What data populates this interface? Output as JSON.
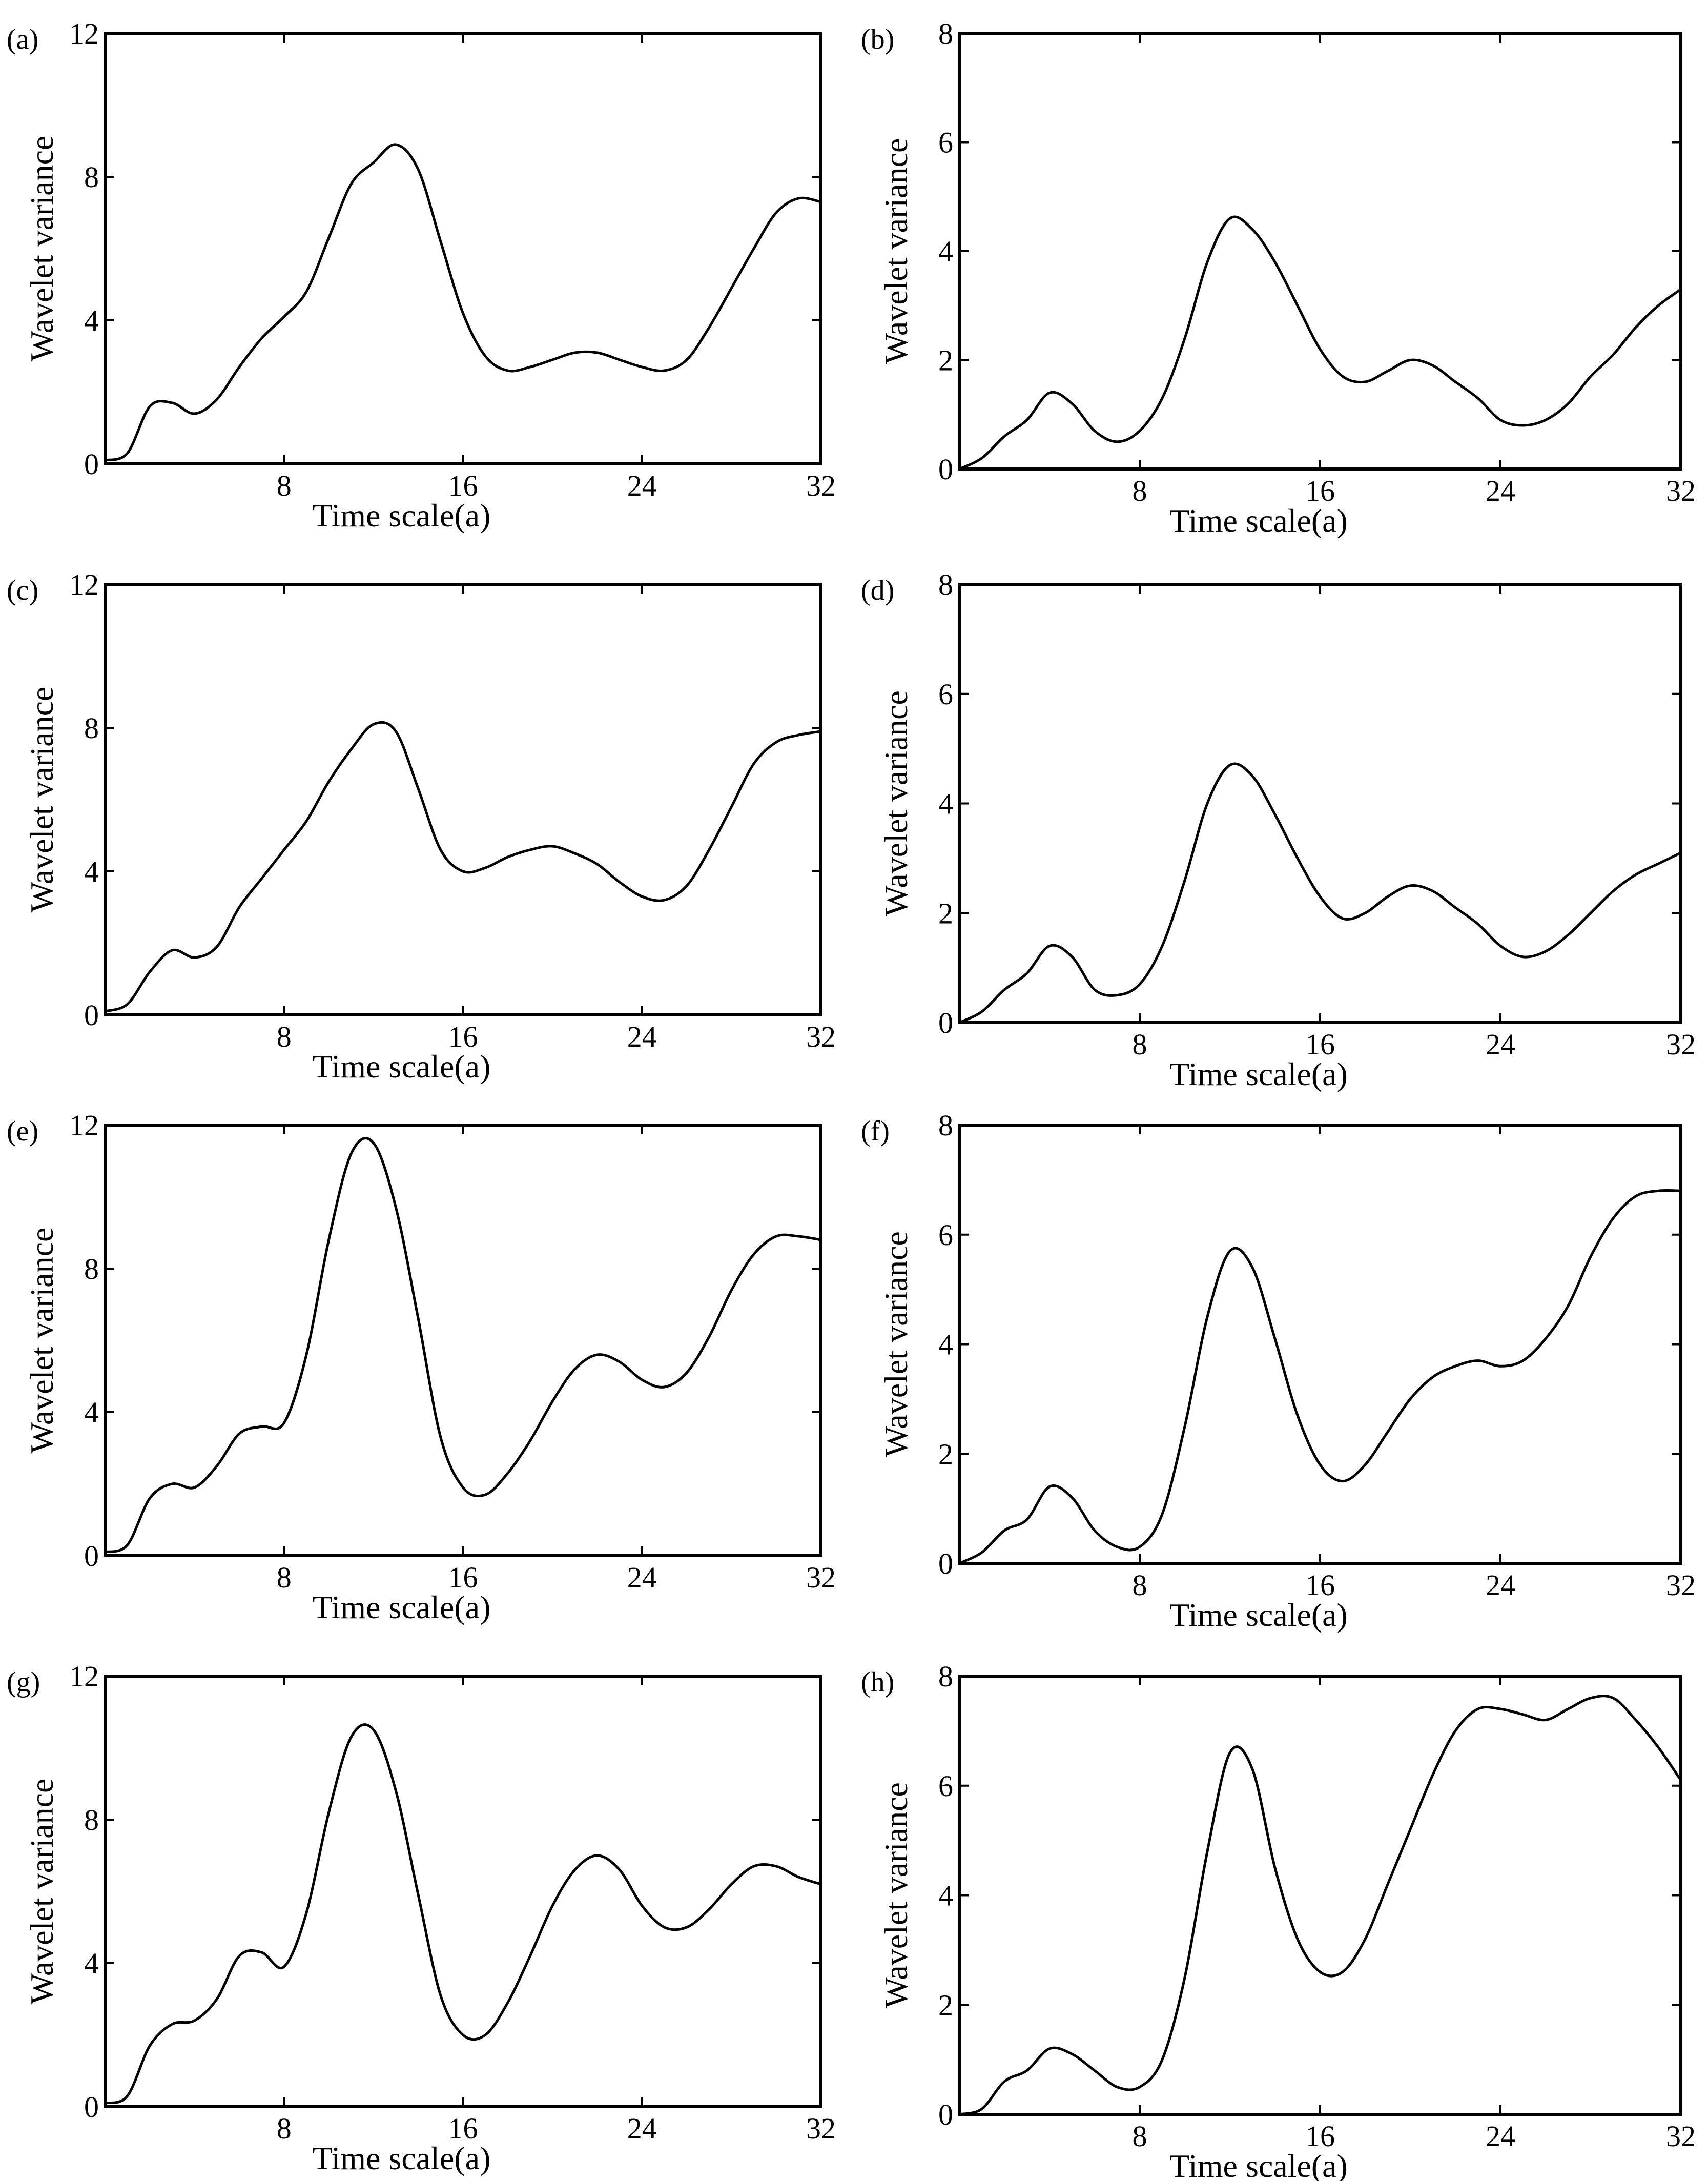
{
  "chart_data": [
    {
      "panel": "(a)",
      "type": "line",
      "xlabel": "Time scale(a)",
      "ylabel": "Wavelet variance",
      "xlim": [
        0,
        32
      ],
      "ylim": [
        0,
        12
      ],
      "xticks": [
        8,
        16,
        24,
        32
      ],
      "yticks": [
        0,
        4,
        8,
        12
      ],
      "x": [
        0,
        1,
        2,
        3,
        4,
        5,
        6,
        7,
        8,
        9,
        10,
        11,
        12,
        13,
        14,
        15,
        16,
        17,
        18,
        19,
        20,
        21,
        22,
        23,
        24,
        25,
        26,
        27,
        28,
        29,
        30,
        31,
        32
      ],
      "y": [
        0.1,
        0.3,
        1.6,
        1.7,
        1.4,
        1.8,
        2.7,
        3.5,
        4.1,
        4.8,
        6.3,
        7.8,
        8.4,
        8.9,
        8.2,
        6.2,
        4.2,
        3.0,
        2.6,
        2.7,
        2.9,
        3.1,
        3.1,
        2.9,
        2.7,
        2.6,
        2.9,
        3.8,
        4.9,
        6.0,
        7.0,
        7.4,
        7.3
      ]
    },
    {
      "panel": "(b)",
      "type": "line",
      "xlabel": "Time scale(a)",
      "ylabel": "Wavelet variance",
      "xlim": [
        0,
        32
      ],
      "ylim": [
        0,
        8
      ],
      "xticks": [
        8,
        16,
        24,
        32
      ],
      "yticks": [
        0,
        2,
        4,
        6,
        8
      ],
      "x": [
        0,
        1,
        2,
        3,
        4,
        5,
        6,
        7,
        8,
        9,
        10,
        11,
        12,
        13,
        14,
        15,
        16,
        17,
        18,
        19,
        20,
        21,
        22,
        23,
        24,
        25,
        26,
        27,
        28,
        29,
        30,
        31,
        32
      ],
      "y": [
        0.0,
        0.2,
        0.6,
        0.9,
        1.4,
        1.2,
        0.7,
        0.5,
        0.7,
        1.3,
        2.4,
        3.8,
        4.6,
        4.4,
        3.8,
        3.0,
        2.2,
        1.7,
        1.6,
        1.8,
        2.0,
        1.9,
        1.6,
        1.3,
        0.9,
        0.8,
        0.9,
        1.2,
        1.7,
        2.1,
        2.6,
        3.0,
        3.3
      ]
    },
    {
      "panel": "(c)",
      "type": "line",
      "xlabel": "Time scale(a)",
      "ylabel": "Wavelet variance",
      "xlim": [
        0,
        32
      ],
      "ylim": [
        0,
        12
      ],
      "xticks": [
        8,
        16,
        24,
        32
      ],
      "yticks": [
        0,
        4,
        8,
        12
      ],
      "x": [
        0,
        1,
        2,
        3,
        4,
        5,
        6,
        7,
        8,
        9,
        10,
        11,
        12,
        13,
        14,
        15,
        16,
        17,
        18,
        19,
        20,
        21,
        22,
        23,
        24,
        25,
        26,
        27,
        28,
        29,
        30,
        31,
        32
      ],
      "y": [
        0.1,
        0.3,
        1.2,
        1.8,
        1.6,
        1.9,
        3.0,
        3.8,
        4.6,
        5.4,
        6.5,
        7.4,
        8.1,
        7.9,
        6.3,
        4.6,
        4.0,
        4.1,
        4.4,
        4.6,
        4.7,
        4.5,
        4.2,
        3.7,
        3.3,
        3.2,
        3.6,
        4.6,
        5.8,
        7.0,
        7.6,
        7.8,
        7.9
      ]
    },
    {
      "panel": "(d)",
      "type": "line",
      "xlabel": "Time scale(a)",
      "ylabel": "Wavelet variance",
      "xlim": [
        0,
        32
      ],
      "ylim": [
        0,
        8
      ],
      "xticks": [
        8,
        16,
        24,
        32
      ],
      "yticks": [
        0,
        2,
        4,
        6,
        8
      ],
      "x": [
        0,
        1,
        2,
        3,
        4,
        5,
        6,
        7,
        8,
        9,
        10,
        11,
        12,
        13,
        14,
        15,
        16,
        17,
        18,
        19,
        20,
        21,
        22,
        23,
        24,
        25,
        26,
        27,
        28,
        29,
        30,
        31,
        32
      ],
      "y": [
        0.0,
        0.2,
        0.6,
        0.9,
        1.4,
        1.2,
        0.6,
        0.5,
        0.7,
        1.4,
        2.6,
        4.0,
        4.7,
        4.5,
        3.8,
        3.0,
        2.3,
        1.9,
        2.0,
        2.3,
        2.5,
        2.4,
        2.1,
        1.8,
        1.4,
        1.2,
        1.3,
        1.6,
        2.0,
        2.4,
        2.7,
        2.9,
        3.1
      ]
    },
    {
      "panel": "(e)",
      "type": "line",
      "xlabel": "Time scale(a)",
      "ylabel": "Wavelet variance",
      "xlim": [
        0,
        32
      ],
      "ylim": [
        0,
        12
      ],
      "xticks": [
        8,
        16,
        24,
        32
      ],
      "yticks": [
        0,
        4,
        8,
        12
      ],
      "x": [
        0,
        1,
        2,
        3,
        4,
        5,
        6,
        7,
        8,
        9,
        10,
        11,
        12,
        13,
        14,
        15,
        16,
        17,
        18,
        19,
        20,
        21,
        22,
        23,
        24,
        25,
        26,
        27,
        28,
        29,
        30,
        31,
        32
      ],
      "y": [
        0.1,
        0.3,
        1.6,
        2.0,
        1.9,
        2.5,
        3.4,
        3.6,
        3.7,
        5.6,
        8.8,
        11.2,
        11.5,
        9.7,
        6.6,
        3.3,
        1.9,
        1.7,
        2.3,
        3.2,
        4.3,
        5.2,
        5.6,
        5.4,
        4.9,
        4.7,
        5.1,
        6.1,
        7.4,
        8.4,
        8.9,
        8.9,
        8.8
      ]
    },
    {
      "panel": "(f)",
      "type": "line",
      "xlabel": "Time scale(a)",
      "ylabel": "Wavelet variance",
      "xlim": [
        0,
        32
      ],
      "ylim": [
        0,
        8
      ],
      "xticks": [
        8,
        16,
        24,
        32
      ],
      "yticks": [
        0,
        2,
        4,
        6,
        8
      ],
      "x": [
        0,
        1,
        2,
        3,
        4,
        5,
        6,
        7,
        8,
        9,
        10,
        11,
        12,
        13,
        14,
        15,
        16,
        17,
        18,
        19,
        20,
        21,
        22,
        23,
        24,
        25,
        26,
        27,
        28,
        29,
        30,
        31,
        32
      ],
      "y": [
        0.0,
        0.2,
        0.6,
        0.8,
        1.4,
        1.2,
        0.6,
        0.3,
        0.3,
        0.9,
        2.5,
        4.5,
        5.7,
        5.4,
        4.1,
        2.7,
        1.8,
        1.5,
        1.8,
        2.4,
        3.0,
        3.4,
        3.6,
        3.7,
        3.6,
        3.7,
        4.1,
        4.7,
        5.6,
        6.3,
        6.7,
        6.8,
        6.8
      ]
    },
    {
      "panel": "(g)",
      "type": "line",
      "xlabel": "Time scale(a)",
      "ylabel": "Wavelet variance",
      "xlim": [
        0,
        32
      ],
      "ylim": [
        0,
        12
      ],
      "xticks": [
        8,
        16,
        24,
        32
      ],
      "yticks": [
        0,
        4,
        8,
        12
      ],
      "x": [
        0,
        1,
        2,
        3,
        4,
        5,
        6,
        7,
        8,
        9,
        10,
        11,
        12,
        13,
        14,
        15,
        16,
        17,
        18,
        19,
        20,
        21,
        22,
        23,
        24,
        25,
        26,
        27,
        28,
        29,
        30,
        31,
        32
      ],
      "y": [
        0.1,
        0.3,
        1.7,
        2.3,
        2.4,
        3.0,
        4.2,
        4.3,
        3.9,
        5.4,
        8.2,
        10.3,
        10.5,
        8.8,
        5.9,
        3.1,
        2.0,
        2.0,
        2.9,
        4.2,
        5.6,
        6.6,
        7.0,
        6.6,
        5.6,
        5.0,
        5.0,
        5.5,
        6.2,
        6.7,
        6.7,
        6.4,
        6.2
      ]
    },
    {
      "panel": "(h)",
      "type": "line",
      "xlabel": "Time scale(a)",
      "ylabel": "Wavelet variance",
      "xlim": [
        0,
        32
      ],
      "ylim": [
        0,
        8
      ],
      "xticks": [
        8,
        16,
        24,
        32
      ],
      "yticks": [
        0,
        2,
        4,
        6,
        8
      ],
      "x": [
        0,
        1,
        2,
        3,
        4,
        5,
        6,
        7,
        8,
        9,
        10,
        11,
        12,
        13,
        14,
        15,
        16,
        17,
        18,
        19,
        20,
        21,
        22,
        23,
        24,
        25,
        26,
        27,
        28,
        29,
        30,
        31,
        32
      ],
      "y": [
        0.0,
        0.1,
        0.6,
        0.8,
        1.2,
        1.1,
        0.8,
        0.5,
        0.5,
        1.0,
        2.5,
        4.8,
        6.6,
        6.3,
        4.5,
        3.2,
        2.6,
        2.6,
        3.2,
        4.2,
        5.2,
        6.2,
        7.0,
        7.4,
        7.4,
        7.3,
        7.2,
        7.4,
        7.6,
        7.6,
        7.2,
        6.7,
        6.1
      ]
    }
  ]
}
